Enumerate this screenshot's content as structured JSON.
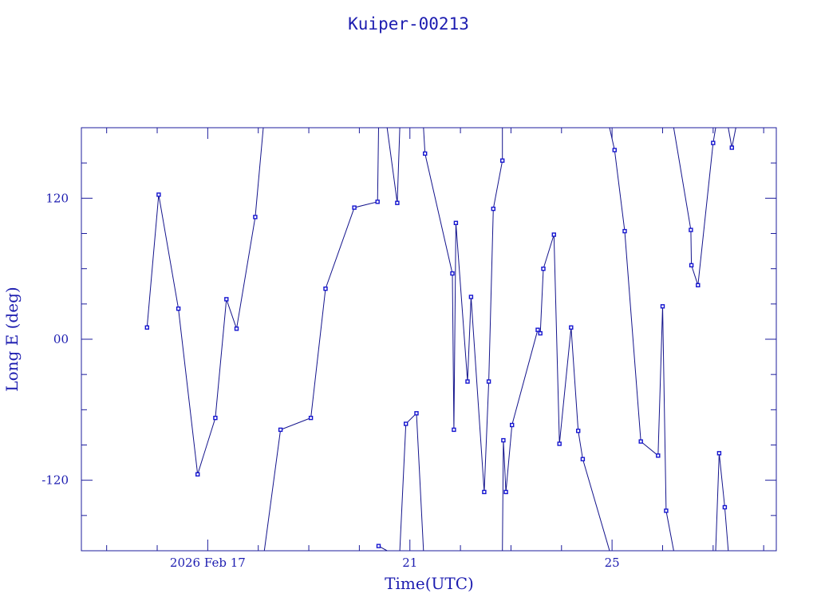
{
  "chart_data": {
    "type": "line",
    "title": "Kuiper-00213",
    "xlabel": "Time(UTC)",
    "ylabel": "Long E (deg)",
    "xlim": [
      14.5,
      28.25
    ],
    "ylim": [
      -180,
      180
    ],
    "x_ticks": [
      {
        "value": 17,
        "label": "2026 Feb 17"
      },
      {
        "value": 21,
        "label": "21"
      },
      {
        "value": 25,
        "label": "25"
      }
    ],
    "y_ticks": [
      {
        "value": 120,
        "label": "120"
      },
      {
        "value": 0,
        "label": "00"
      },
      {
        "value": -120,
        "label": "-120"
      }
    ],
    "color": "#1414b4",
    "series": [
      {
        "segments": [
          [
            [
              15.8,
              10
            ],
            [
              16.03,
              123
            ],
            [
              16.42,
              26
            ],
            [
              16.8,
              -115
            ],
            [
              17.15,
              -67
            ],
            [
              17.37,
              34
            ],
            [
              17.57,
              9
            ],
            [
              17.94,
              104
            ],
            [
              18.1,
              180
            ]
          ],
          [
            [
              18.12,
              -180
            ],
            [
              18.44,
              -77
            ],
            [
              19.04,
              -67
            ],
            [
              19.33,
              43
            ],
            [
              19.9,
              112
            ],
            [
              20.36,
              117
            ],
            [
              20.38,
              180
            ]
          ],
          [
            [
              20.38,
              -176
            ],
            [
              20.55,
              -180
            ]
          ],
          [
            [
              20.55,
              180
            ],
            [
              20.75,
              116
            ],
            [
              20.8,
              180
            ]
          ],
          [
            [
              20.8,
              -180
            ],
            [
              20.92,
              -72
            ],
            [
              21.13,
              -63
            ],
            [
              21.27,
              -180
            ]
          ],
          [
            [
              21.27,
              180
            ],
            [
              21.3,
              158
            ],
            [
              21.84,
              56
            ],
            [
              21.87,
              -77
            ],
            [
              21.91,
              99
            ],
            [
              22.14,
              -36
            ],
            [
              22.21,
              36
            ],
            [
              22.47,
              -130
            ],
            [
              22.56,
              -36
            ],
            [
              22.65,
              111
            ],
            [
              22.83,
              152
            ],
            [
              22.83,
              180
            ]
          ],
          [
            [
              22.83,
              -180
            ],
            [
              22.85,
              -86
            ],
            [
              22.9,
              -130
            ],
            [
              23.02,
              -73
            ],
            [
              23.53,
              8
            ],
            [
              23.58,
              5
            ],
            [
              23.64,
              60
            ],
            [
              23.85,
              89
            ],
            [
              23.96,
              -89
            ],
            [
              24.19,
              10
            ],
            [
              24.33,
              -78
            ],
            [
              24.42,
              -102
            ],
            [
              24.95,
              -180
            ]
          ],
          [
            [
              24.95,
              180
            ],
            [
              25.05,
              161
            ],
            [
              25.25,
              92
            ],
            [
              25.57,
              -87
            ],
            [
              25.91,
              -99
            ],
            [
              26,
              28
            ],
            [
              26.07,
              -146
            ],
            [
              26.22,
              -180
            ]
          ],
          [
            [
              26.22,
              180
            ],
            [
              26.56,
              93
            ],
            [
              26.57,
              63
            ],
            [
              26.7,
              46
            ],
            [
              27.0,
              167
            ],
            [
              27.05,
              180
            ]
          ],
          [
            [
              27.05,
              -180
            ],
            [
              27.12,
              -97
            ],
            [
              27.23,
              -143
            ],
            [
              27.3,
              -180
            ]
          ],
          [
            [
              27.3,
              180
            ],
            [
              27.37,
              163
            ],
            [
              27.45,
              180
            ]
          ]
        ]
      }
    ]
  }
}
